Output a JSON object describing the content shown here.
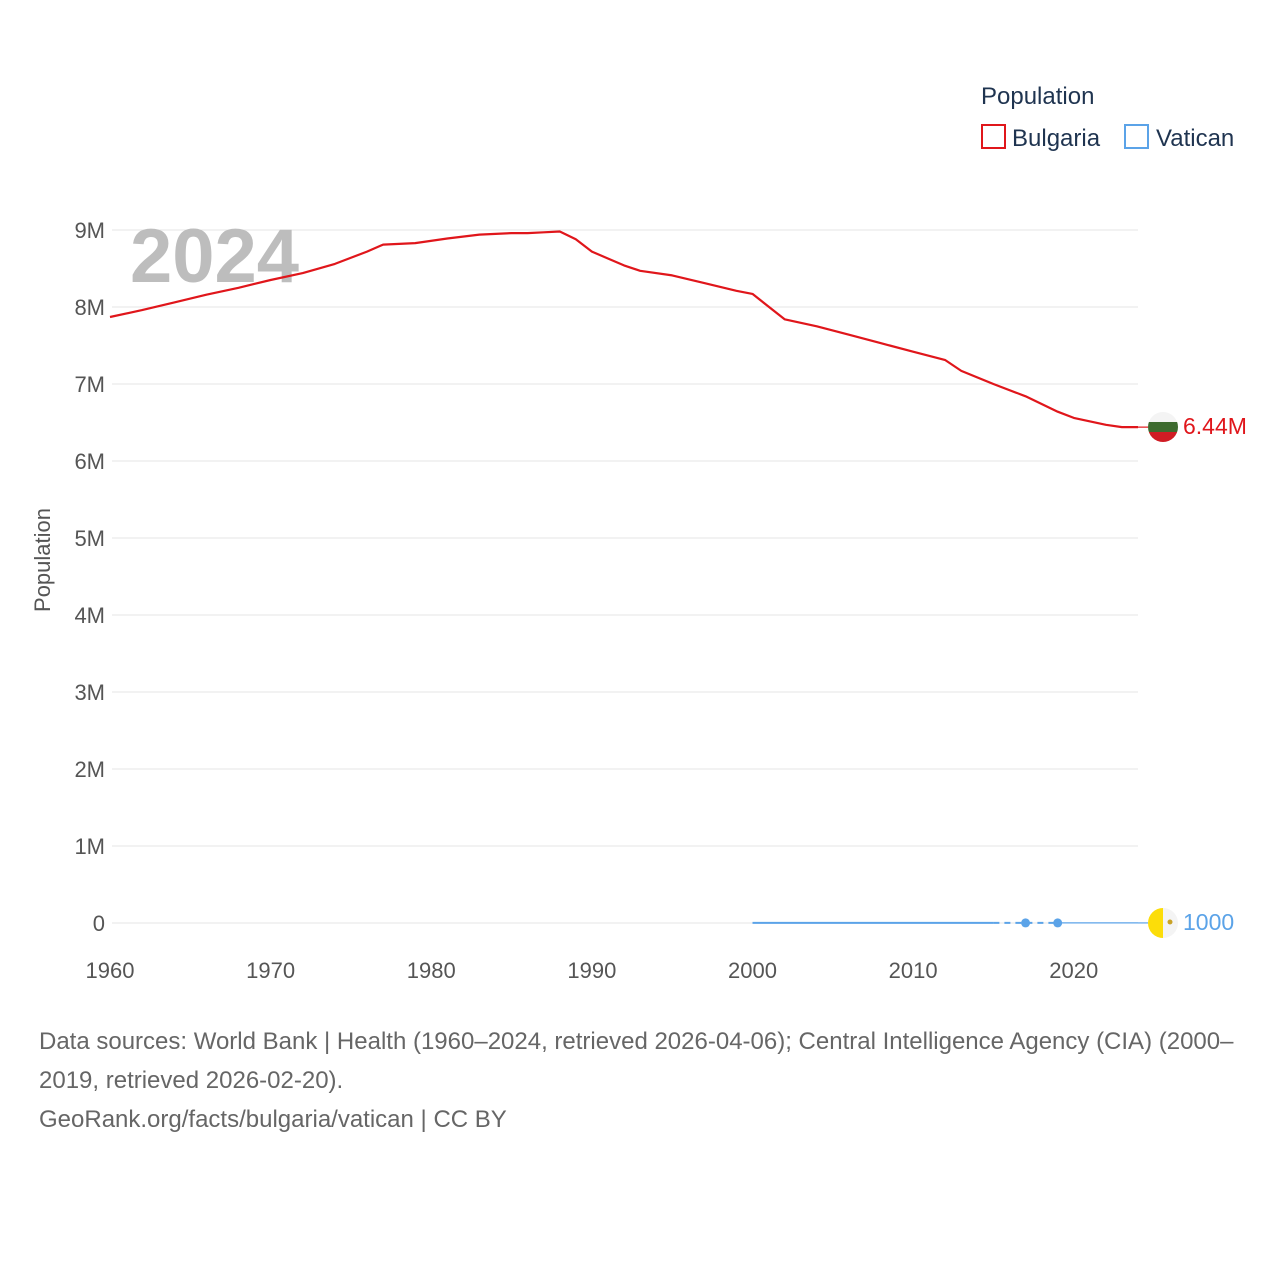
{
  "chart_data": {
    "type": "line",
    "year_overlay": "2024",
    "ylabel": "Population",
    "xlim": [
      1960,
      2024
    ],
    "ylim": [
      0,
      9000000
    ],
    "x_ticks": [
      {
        "value": 1960,
        "label": "1960"
      },
      {
        "value": 1970,
        "label": "1970"
      },
      {
        "value": 1980,
        "label": "1980"
      },
      {
        "value": 1990,
        "label": "1990"
      },
      {
        "value": 2000,
        "label": "2000"
      },
      {
        "value": 2010,
        "label": "2010"
      },
      {
        "value": 2020,
        "label": "2020"
      }
    ],
    "y_ticks": [
      {
        "value": 0,
        "label": "0"
      },
      {
        "value": 1000000,
        "label": "1M"
      },
      {
        "value": 2000000,
        "label": "2M"
      },
      {
        "value": 3000000,
        "label": "3M"
      },
      {
        "value": 4000000,
        "label": "4M"
      },
      {
        "value": 5000000,
        "label": "5M"
      },
      {
        "value": 6000000,
        "label": "6M"
      },
      {
        "value": 7000000,
        "label": "7M"
      },
      {
        "value": 8000000,
        "label": "8M"
      },
      {
        "value": 9000000,
        "label": "9M"
      }
    ],
    "legend": {
      "title": "Population",
      "position": "top-right"
    },
    "series": [
      {
        "name": "Bulgaria",
        "color": "#e0161b",
        "end_label": "6.44M",
        "flag": "bulgaria-flag-icon",
        "points": [
          [
            1960,
            7870000
          ],
          [
            1962,
            7960000
          ],
          [
            1964,
            8060000
          ],
          [
            1966,
            8160000
          ],
          [
            1968,
            8250000
          ],
          [
            1970,
            8350000
          ],
          [
            1972,
            8440000
          ],
          [
            1974,
            8560000
          ],
          [
            1976,
            8720000
          ],
          [
            1977,
            8810000
          ],
          [
            1979,
            8830000
          ],
          [
            1981,
            8890000
          ],
          [
            1983,
            8940000
          ],
          [
            1985,
            8960000
          ],
          [
            1986,
            8960000
          ],
          [
            1987,
            8970000
          ],
          [
            1988,
            8980000
          ],
          [
            1989,
            8880000
          ],
          [
            1990,
            8720000
          ],
          [
            1991,
            8630000
          ],
          [
            1992,
            8540000
          ],
          [
            1993,
            8470000
          ],
          [
            1995,
            8410000
          ],
          [
            1997,
            8310000
          ],
          [
            1999,
            8210000
          ],
          [
            2000,
            8170000
          ],
          [
            2002,
            7840000
          ],
          [
            2004,
            7750000
          ],
          [
            2006,
            7640000
          ],
          [
            2008,
            7530000
          ],
          [
            2010,
            7420000
          ],
          [
            2012,
            7310000
          ],
          [
            2013,
            7170000
          ],
          [
            2015,
            7000000
          ],
          [
            2017,
            6840000
          ],
          [
            2019,
            6640000
          ],
          [
            2020,
            6560000
          ],
          [
            2022,
            6470000
          ],
          [
            2023,
            6440000
          ],
          [
            2024,
            6440000
          ]
        ]
      },
      {
        "name": "Vatican",
        "color": "#5ba3e8",
        "end_label": "1000",
        "flag": "vatican-flag-icon",
        "points": [
          [
            2000,
            1000
          ],
          [
            2015,
            1000
          ],
          [
            2017,
            1000
          ],
          [
            2019,
            1000
          ],
          [
            2024,
            1000
          ]
        ],
        "markers": [
          2017,
          2019
        ],
        "dashed_range": [
          2015,
          2019
        ]
      }
    ]
  },
  "footer": {
    "sources": "Data sources: World Bank | Health (1960–2024, retrieved 2026-04-06); Central Intelligence Agency (CIA) (2000–2019, retrieved 2026-02-20).",
    "credit": "GeoRank.org/facts/bulgaria/vatican | CC BY"
  },
  "colors": {
    "bulgaria_flag_white": "#f4f4f4",
    "bulgaria_flag_green": "#3e6b2f",
    "bulgaria_flag_red": "#d01c24",
    "vatican_flag_yellow": "#fcdd09",
    "vatican_flag_white": "#f4f4f4"
  }
}
